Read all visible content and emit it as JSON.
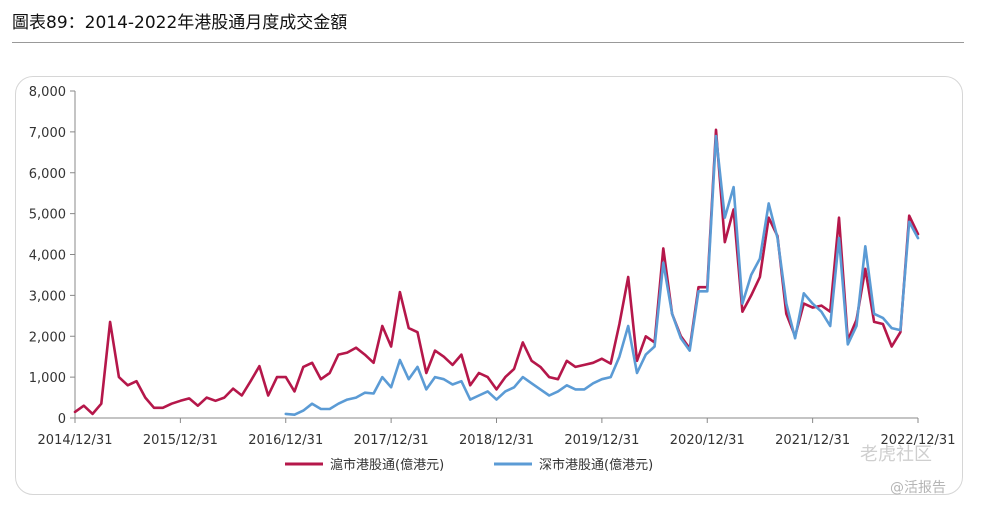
{
  "header": {
    "title": "圖表89：2014-2022年港股通月度成交金額"
  },
  "watermark": {
    "brand": "老虎社区",
    "source": "@活报告"
  },
  "colors": {
    "sh": "#b5174a",
    "sz": "#5b9bd5",
    "axis": "#888888"
  },
  "chart_data": {
    "type": "line",
    "x_ticks": [
      "2014/12/31",
      "2015/12/31",
      "2016/12/31",
      "2017/12/31",
      "2018/12/31",
      "2019/12/31",
      "2020/12/31",
      "2021/12/31",
      "2022/12/31"
    ],
    "y_ticks": [
      "0",
      "1,000",
      "2,000",
      "3,000",
      "4,000",
      "5,000",
      "6,000",
      "7,000",
      "8,000"
    ],
    "ylim": [
      0,
      8000
    ],
    "xlim_months": [
      0,
      96
    ],
    "grid": false,
    "legend_position": "bottom",
    "series": [
      {
        "name": "滬市港股通(億港元)",
        "color": "#b5174a",
        "start_month": 0,
        "values": [
          150,
          300,
          100,
          350,
          2350,
          1000,
          800,
          900,
          500,
          250,
          250,
          350,
          420,
          480,
          300,
          500,
          420,
          500,
          720,
          550,
          900,
          1270,
          550,
          1000,
          1000,
          650,
          1250,
          1350,
          950,
          1100,
          1550,
          1600,
          1720,
          1550,
          1350,
          2250,
          1750,
          3080,
          2200,
          2100,
          1100,
          1650,
          1500,
          1300,
          1550,
          800,
          1100,
          1000,
          700,
          1000,
          1200,
          1850,
          1400,
          1250,
          1000,
          950,
          1400,
          1250,
          1300,
          1350,
          1450,
          1330,
          2300,
          3450,
          1400,
          2000,
          1850,
          4150,
          2550,
          2000,
          1700,
          3200,
          3200,
          7050,
          4300,
          5100,
          2600,
          3000,
          3450,
          4900,
          4450,
          2550,
          2000,
          2800,
          2700,
          2750,
          2600,
          4900,
          1900,
          2400,
          3650,
          2350,
          2300,
          1750,
          2100,
          4950,
          4500
        ]
      },
      {
        "name": "深市港股通(億港元)",
        "color": "#5b9bd5",
        "start_month": 24,
        "values": [
          100,
          80,
          180,
          350,
          220,
          220,
          350,
          450,
          500,
          620,
          600,
          1000,
          750,
          1420,
          950,
          1250,
          700,
          1000,
          950,
          820,
          900,
          450,
          550,
          650,
          450,
          650,
          750,
          1000,
          850,
          700,
          550,
          650,
          800,
          700,
          700,
          850,
          950,
          1000,
          1500,
          2250,
          1100,
          1550,
          1750,
          3800,
          2550,
          1950,
          1650,
          3100,
          3100,
          6900,
          4900,
          5650,
          2800,
          3500,
          3900,
          5250,
          4400,
          2800,
          1950,
          3050,
          2800,
          2600,
          2250,
          4400,
          1800,
          2250,
          4200,
          2550,
          2450,
          2200,
          2150,
          4800,
          4400
        ]
      }
    ]
  }
}
